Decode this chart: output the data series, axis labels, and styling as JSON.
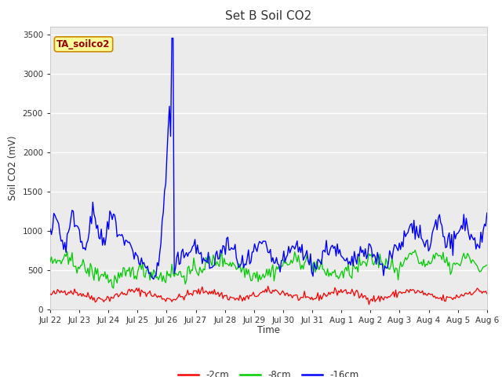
{
  "title": "Set B Soil CO2",
  "ylabel": "Soil CO2 (mV)",
  "xlabel": "Time",
  "annotation_label": "TA_soilco2",
  "legend_labels": [
    "-2cm",
    "-8cm",
    "-16cm"
  ],
  "line_colors": [
    "#ff0000",
    "#00cc00",
    "#0000ff"
  ],
  "ylim": [
    0,
    3600
  ],
  "yticks": [
    0,
    500,
    1000,
    1500,
    2000,
    2500,
    3000,
    3500
  ],
  "fig_bg_color": "#ffffff",
  "plot_bg_color": "#ebebeb",
  "grid_color": "#ffffff",
  "num_points": 360,
  "annotation_facecolor": "#ffff99",
  "annotation_edgecolor": "#cc8800",
  "tick_labels": [
    "Jul 22",
    "Jul 23",
    "Jul 24",
    "Jul 25",
    "Jul 26",
    "Jul 27",
    "Jul 28",
    "Jul 29",
    "Jul 30",
    "Jul 31",
    "Aug 1",
    "Aug 2",
    "Aug 3",
    "Aug 4",
    "Aug 5",
    "Aug 6"
  ]
}
